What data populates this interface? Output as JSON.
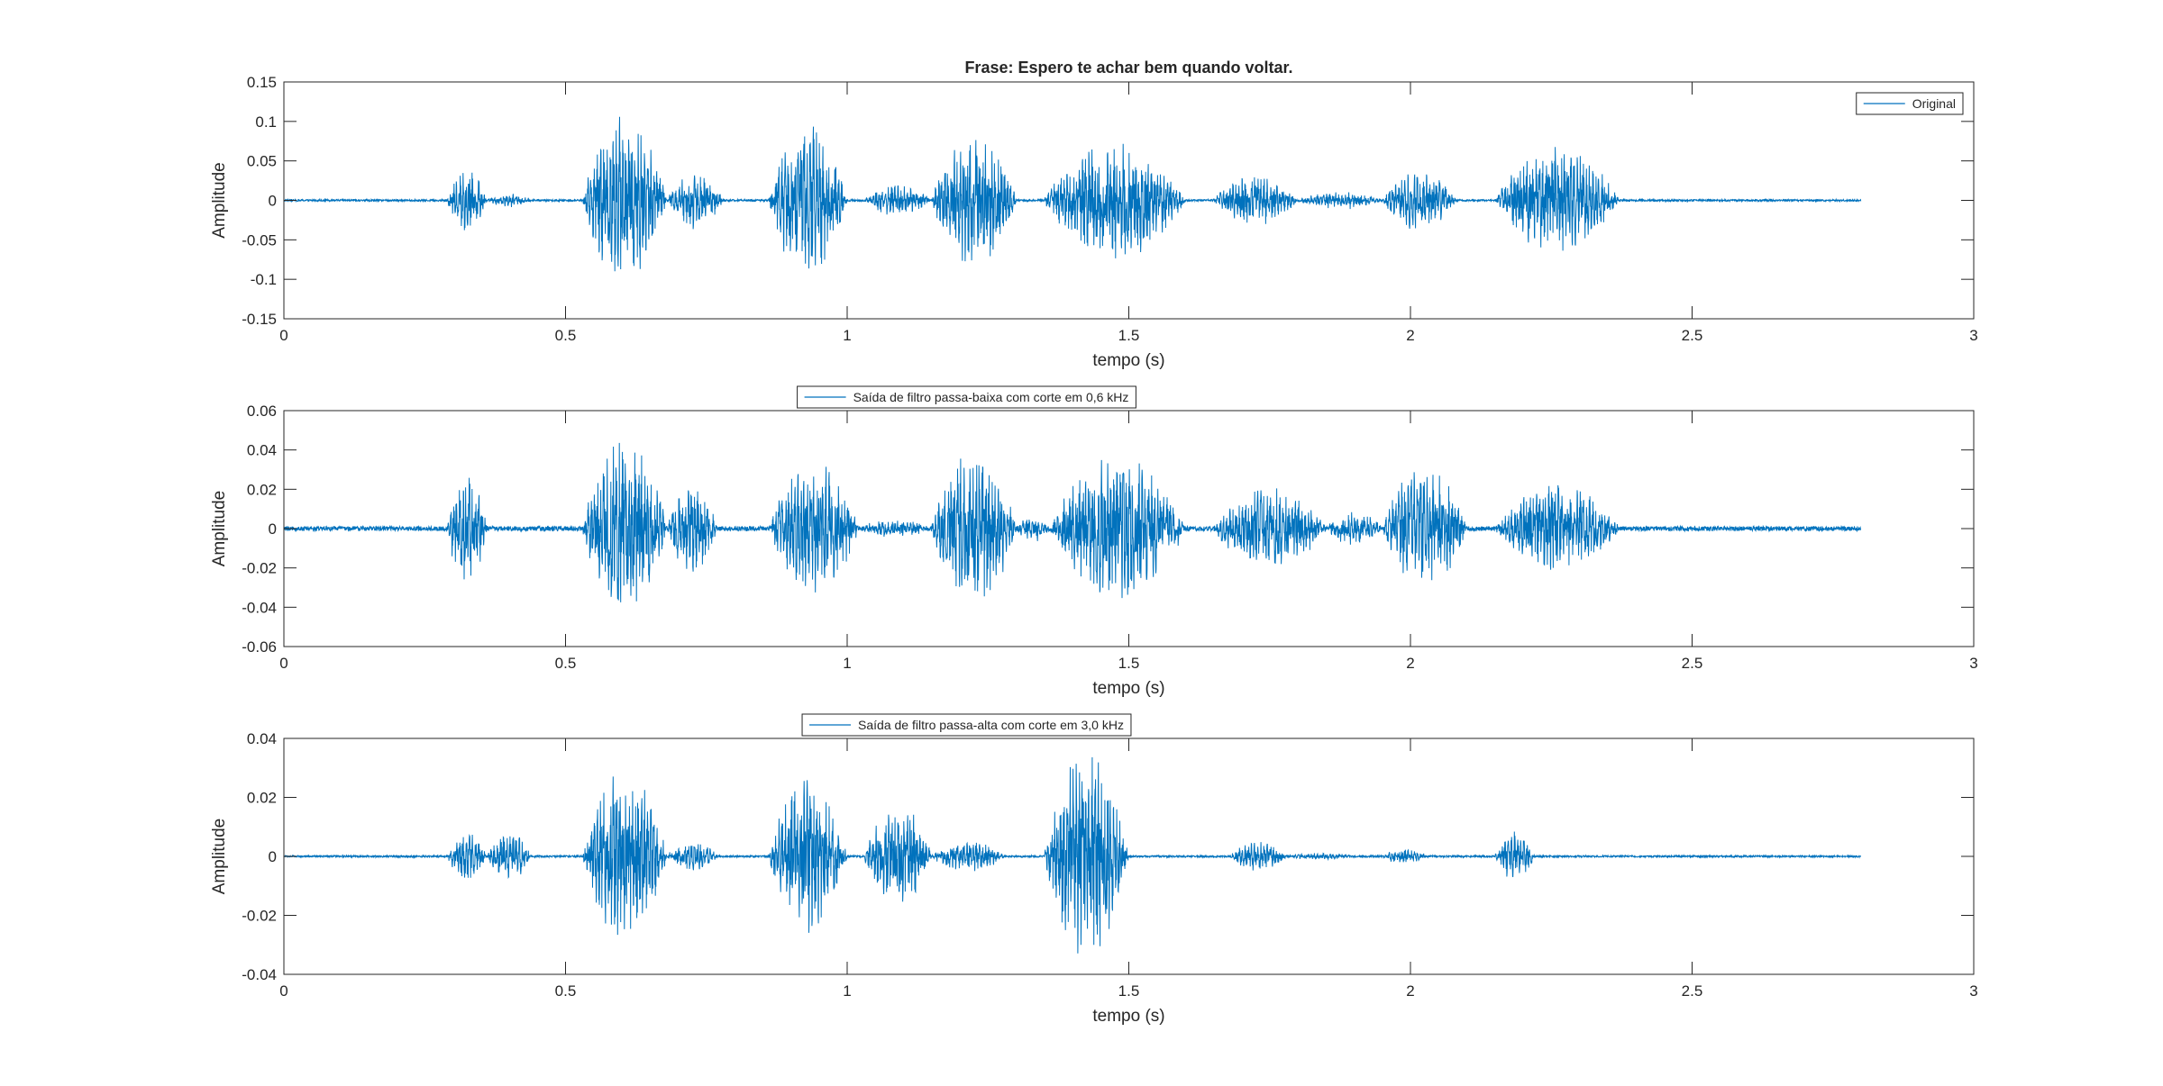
{
  "figure": {
    "background": "#ffffff",
    "axes_color": "#262626",
    "line_color": "#0072bd"
  },
  "chart_data": [
    {
      "type": "line",
      "title": "Frase: Espero te achar bem quando voltar.",
      "xlabel": "tempo (s)",
      "ylabel": "Amplitude",
      "xlim": [
        0,
        3
      ],
      "ylim": [
        -0.15,
        0.15
      ],
      "xticks": [
        0,
        0.5,
        1,
        1.5,
        2,
        2.5,
        3
      ],
      "xtick_labels": [
        "0",
        "0.5",
        "1",
        "1.5",
        "2",
        "2.5",
        "3"
      ],
      "yticks": [
        -0.15,
        -0.1,
        -0.05,
        0,
        0.05,
        0.1,
        0.15
      ],
      "ytick_labels": [
        "-0.15",
        "-0.1",
        "-0.05",
        "0",
        "0.05",
        "0.1",
        "0.15"
      ],
      "grid": false,
      "legend": {
        "position": "top-right",
        "entries": [
          "Original"
        ]
      },
      "series": [
        {
          "name": "Original",
          "color": "#0072bd",
          "duration": 2.8,
          "noise_floor": 0.0012,
          "segments": [
            {
              "start": 0.29,
              "end": 0.36,
              "amp": 0.04
            },
            {
              "start": 0.36,
              "end": 0.44,
              "amp": 0.008
            },
            {
              "start": 0.53,
              "end": 0.68,
              "amp": 0.105
            },
            {
              "start": 0.68,
              "end": 0.78,
              "amp": 0.035
            },
            {
              "start": 0.86,
              "end": 1.0,
              "amp": 0.095
            },
            {
              "start": 1.03,
              "end": 1.15,
              "amp": 0.02
            },
            {
              "start": 1.15,
              "end": 1.3,
              "amp": 0.082
            },
            {
              "start": 1.35,
              "end": 1.6,
              "amp": 0.073
            },
            {
              "start": 1.65,
              "end": 1.8,
              "amp": 0.03
            },
            {
              "start": 1.8,
              "end": 1.95,
              "amp": 0.01
            },
            {
              "start": 1.95,
              "end": 2.08,
              "amp": 0.037
            },
            {
              "start": 2.15,
              "end": 2.37,
              "amp": 0.065
            }
          ]
        }
      ]
    },
    {
      "type": "line",
      "title": "",
      "xlabel": "tempo (s)",
      "ylabel": "Amplitude",
      "xlim": [
        0,
        3
      ],
      "ylim": [
        -0.06,
        0.06
      ],
      "xticks": [
        0,
        0.5,
        1,
        1.5,
        2,
        2.5,
        3
      ],
      "xtick_labels": [
        "0",
        "0.5",
        "1",
        "1.5",
        "2",
        "2.5",
        "3"
      ],
      "yticks": [
        -0.06,
        -0.04,
        -0.02,
        0,
        0.02,
        0.04,
        0.06
      ],
      "ytick_labels": [
        "-0.06",
        "-0.04",
        "-0.02",
        "0",
        "0.02",
        "0.04",
        "0.06"
      ],
      "grid": false,
      "legend": {
        "position": "top",
        "entries": [
          "Saída de filtro passa-baixa com corte em 0,6 kHz"
        ]
      },
      "series": [
        {
          "name": "Saída de filtro passa-baixa com corte em 0,6 kHz",
          "color": "#0072bd",
          "duration": 2.8,
          "noise_floor": 0.0012,
          "segments": [
            {
              "start": 0.29,
              "end": 0.36,
              "amp": 0.03
            },
            {
              "start": 0.53,
              "end": 0.68,
              "amp": 0.045
            },
            {
              "start": 0.68,
              "end": 0.77,
              "amp": 0.022
            },
            {
              "start": 0.86,
              "end": 1.02,
              "amp": 0.032
            },
            {
              "start": 1.02,
              "end": 1.15,
              "amp": 0.004
            },
            {
              "start": 1.15,
              "end": 1.3,
              "amp": 0.038
            },
            {
              "start": 1.3,
              "end": 1.36,
              "amp": 0.006
            },
            {
              "start": 1.36,
              "end": 1.6,
              "amp": 0.036
            },
            {
              "start": 1.65,
              "end": 1.85,
              "amp": 0.02
            },
            {
              "start": 1.85,
              "end": 1.95,
              "amp": 0.008
            },
            {
              "start": 1.95,
              "end": 2.1,
              "amp": 0.03
            },
            {
              "start": 2.15,
              "end": 2.37,
              "amp": 0.022
            }
          ]
        }
      ]
    },
    {
      "type": "line",
      "title": "",
      "xlabel": "tempo (s)",
      "ylabel": "Amplitude",
      "xlim": [
        0,
        3
      ],
      "ylim": [
        -0.04,
        0.04
      ],
      "xticks": [
        0,
        0.5,
        1,
        1.5,
        2,
        2.5,
        3
      ],
      "xtick_labels": [
        "0",
        "0.5",
        "1",
        "1.5",
        "2",
        "2.5",
        "3"
      ],
      "yticks": [
        -0.04,
        -0.02,
        0,
        0.02,
        0.04
      ],
      "ytick_labels": [
        "-0.04",
        "-0.02",
        "0",
        "0.02",
        "0.04"
      ],
      "grid": false,
      "legend": {
        "position": "top",
        "entries": [
          "Saída de filtro passa-alta com corte em 3,0 kHz"
        ]
      },
      "series": [
        {
          "name": "Saída de filtro passa-alta com corte em 3,0 kHz",
          "color": "#0072bd",
          "duration": 2.8,
          "noise_floor": 0.0003,
          "segments": [
            {
              "start": 0.29,
              "end": 0.36,
              "amp": 0.008
            },
            {
              "start": 0.36,
              "end": 0.44,
              "amp": 0.008
            },
            {
              "start": 0.53,
              "end": 0.68,
              "amp": 0.028
            },
            {
              "start": 0.68,
              "end": 0.77,
              "amp": 0.005
            },
            {
              "start": 0.86,
              "end": 1.0,
              "amp": 0.025
            },
            {
              "start": 1.03,
              "end": 1.15,
              "amp": 0.017
            },
            {
              "start": 1.15,
              "end": 1.28,
              "amp": 0.005
            },
            {
              "start": 1.35,
              "end": 1.5,
              "amp": 0.034
            },
            {
              "start": 1.68,
              "end": 1.78,
              "amp": 0.005
            },
            {
              "start": 1.78,
              "end": 1.9,
              "amp": 0.001
            },
            {
              "start": 1.95,
              "end": 2.03,
              "amp": 0.0025
            },
            {
              "start": 2.15,
              "end": 2.22,
              "amp": 0.008
            }
          ]
        }
      ]
    }
  ]
}
